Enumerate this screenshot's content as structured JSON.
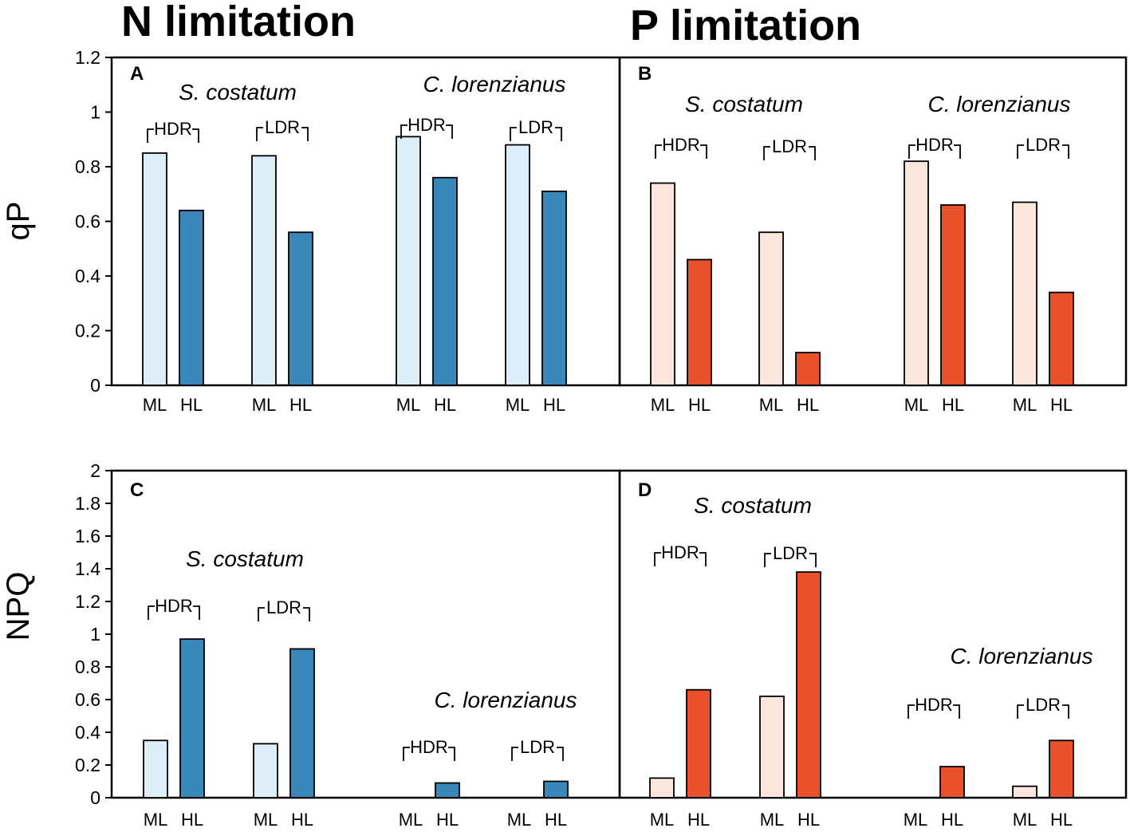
{
  "titles": {
    "n": "N limitation",
    "p": "P limitation"
  },
  "colors": {
    "n_light": "#DDEEF9",
    "n_dark": "#3A87B9",
    "p_light": "#FDE6DE",
    "p_dark": "#E8512A"
  },
  "chart_data": [
    {
      "panel": "A",
      "type": "bar",
      "ylabel": "qP",
      "ylim": [
        0,
        1.2
      ],
      "yticks": [
        "0",
        "0.2",
        "0.4",
        "0.6",
        "0.8",
        "1",
        "1.2"
      ],
      "species": [
        {
          "name": "S. costatum",
          "groups": [
            {
              "label": "HDR",
              "categories": [
                "ML",
                "HL"
              ],
              "values": [
                0.85,
                0.64
              ]
            },
            {
              "label": "LDR",
              "categories": [
                "ML",
                "HL"
              ],
              "values": [
                0.84,
                0.56
              ]
            }
          ]
        },
        {
          "name": "C. lorenzianus",
          "groups": [
            {
              "label": "HDR",
              "categories": [
                "ML",
                "HL"
              ],
              "values": [
                0.91,
                0.76
              ]
            },
            {
              "label": "LDR",
              "categories": [
                "ML",
                "HL"
              ],
              "values": [
                0.88,
                0.71
              ]
            }
          ]
        }
      ]
    },
    {
      "panel": "B",
      "type": "bar",
      "ylabel": "",
      "ylim": [
        0,
        1.2
      ],
      "species": [
        {
          "name": "S. costatum",
          "groups": [
            {
              "label": "HDR",
              "categories": [
                "ML",
                "HL"
              ],
              "values": [
                0.74,
                0.46
              ]
            },
            {
              "label": "LDR",
              "categories": [
                "ML",
                "HL"
              ],
              "values": [
                0.56,
                0.12
              ]
            }
          ]
        },
        {
          "name": "C. lorenzianus",
          "groups": [
            {
              "label": "HDR",
              "categories": [
                "ML",
                "HL"
              ],
              "values": [
                0.82,
                0.66
              ]
            },
            {
              "label": "LDR",
              "categories": [
                "ML",
                "HL"
              ],
              "values": [
                0.67,
                0.34
              ]
            }
          ]
        }
      ]
    },
    {
      "panel": "C",
      "type": "bar",
      "ylabel": "NPQ",
      "ylim": [
        0,
        2
      ],
      "yticks": [
        "0",
        "0.2",
        "0.4",
        "0.6",
        "0.8",
        "1",
        "1.2",
        "1.4",
        "1.6",
        "1.8",
        "2"
      ],
      "species": [
        {
          "name": "S. costatum",
          "groups": [
            {
              "label": "HDR",
              "categories": [
                "ML",
                "HL"
              ],
              "values": [
                0.35,
                0.97
              ]
            },
            {
              "label": "LDR",
              "categories": [
                "ML",
                "HL"
              ],
              "values": [
                0.33,
                0.91
              ]
            }
          ]
        },
        {
          "name": "C. lorenzianus",
          "groups": [
            {
              "label": "HDR",
              "categories": [
                "ML",
                "HL"
              ],
              "values": [
                0,
                0.09
              ]
            },
            {
              "label": "LDR",
              "categories": [
                "ML",
                "HL"
              ],
              "values": [
                0,
                0.1
              ]
            }
          ]
        }
      ]
    },
    {
      "panel": "D",
      "type": "bar",
      "ylabel": "",
      "ylim": [
        0,
        2
      ],
      "species": [
        {
          "name": "S. costatum",
          "groups": [
            {
              "label": "HDR",
              "categories": [
                "ML",
                "HL"
              ],
              "values": [
                0.12,
                0.66
              ]
            },
            {
              "label": "LDR",
              "categories": [
                "ML",
                "HL"
              ],
              "values": [
                0.62,
                1.38
              ]
            }
          ]
        },
        {
          "name": "C. lorenzianus",
          "groups": [
            {
              "label": "HDR",
              "categories": [
                "ML",
                "HL"
              ],
              "values": [
                0,
                0.19
              ]
            },
            {
              "label": "LDR",
              "categories": [
                "ML",
                "HL"
              ],
              "values": [
                0.07,
                0.35
              ]
            }
          ]
        }
      ]
    }
  ]
}
